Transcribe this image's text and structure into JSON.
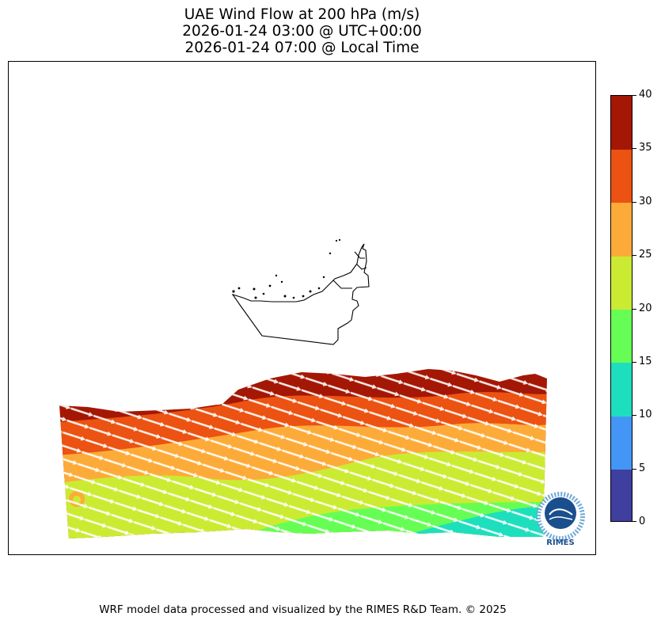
{
  "title": {
    "line1": "UAE Wind Flow at 200 hPa (m/s)",
    "line2": "2026-01-24 03:00 @ UTC+00:00",
    "line3": "2026-01-24 07:00 @ Local Time"
  },
  "footer": "WRF model data processed and visualized by the RIMES R&D Team. © 2025",
  "logo": {
    "text": "RIMES",
    "ring_text": "Integrated Multi-Hazard Early Warning System"
  },
  "chart_data": {
    "type": "heatmap",
    "variable": "wind speed",
    "units": "m/s",
    "colorbar": {
      "ticks": [
        0,
        5,
        10,
        15,
        20,
        25,
        30,
        35,
        40
      ],
      "labels": [
        "0",
        "5",
        "10",
        "15",
        "20",
        "25",
        "30",
        "35",
        "40"
      ],
      "levels": [
        {
          "min": 0,
          "max": 5,
          "color": "#3f3f9f"
        },
        {
          "min": 5,
          "max": 10,
          "color": "#4396f5"
        },
        {
          "min": 10,
          "max": 15,
          "color": "#1ddfbe"
        },
        {
          "min": 15,
          "max": 20,
          "color": "#66fe55"
        },
        {
          "min": 20,
          "max": 25,
          "color": "#cbeb33"
        },
        {
          "min": 25,
          "max": 30,
          "color": "#fdab38"
        },
        {
          "min": 30,
          "max": 35,
          "color": "#ec5211"
        },
        {
          "min": 35,
          "max": 40,
          "color": "#a41704"
        }
      ]
    },
    "field_description": "wind speeds decrease from north (35-40 m/s) to south (15-20 m/s, locally 10-15 m/s in southeast); flow directed from west-northwest",
    "wind_direction": "WNW",
    "speed_bands": [
      35,
      30,
      25,
      20,
      15,
      10
    ]
  }
}
